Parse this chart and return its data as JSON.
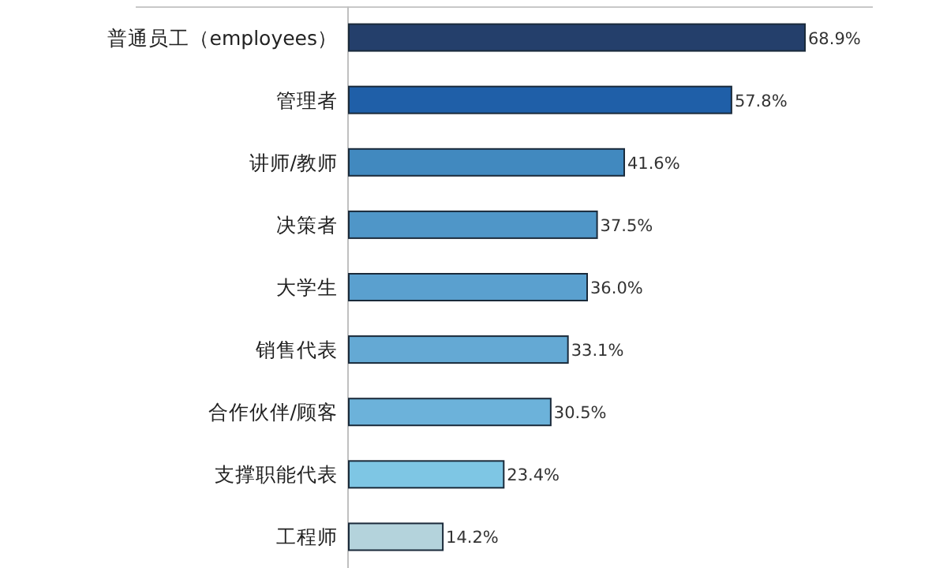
{
  "chart_data": {
    "type": "bar",
    "orientation": "horizontal",
    "categories": [
      "普通员工（employees）",
      "管理者",
      "讲师/教师",
      "决策者",
      "大学生",
      "销售代表",
      "合作伙伴/顾客",
      "支撑职能代表",
      "工程师"
    ],
    "values": [
      68.9,
      57.8,
      41.6,
      37.5,
      36.0,
      33.1,
      30.5,
      23.4,
      14.2
    ],
    "value_labels": [
      "68.9%",
      "57.8%",
      "41.6%",
      "37.5%",
      "36.0%",
      "33.1%",
      "30.5%",
      "23.4%",
      "14.2%"
    ],
    "colors": [
      "#243f6b",
      "#1f5fa8",
      "#4189bf",
      "#4f96c8",
      "#5aa0cf",
      "#64a9d4",
      "#6cb2da",
      "#7ec6e4",
      "#b4d3dc"
    ]
  }
}
